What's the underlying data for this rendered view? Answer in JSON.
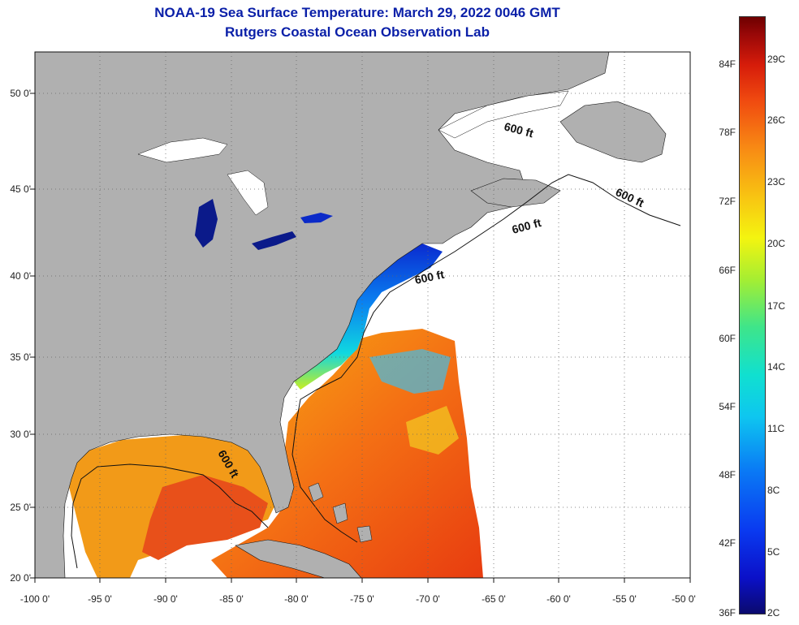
{
  "title_line1": "NOAA-19 Sea Surface Temperature:  March 29, 2022 0046 GMT",
  "title_line2": "Rutgers Coastal Ocean Observation Lab",
  "axes": {
    "lat_labels": [
      "50 0'",
      "45 0'",
      "40 0'",
      "35 0'",
      "30 0'",
      "25 0'",
      "20 0'"
    ],
    "lon_labels": [
      "-100 0'",
      "-95 0'",
      "-90 0'",
      "-85 0'",
      "-80 0'",
      "-75 0'",
      "-70 0'",
      "-65 0'",
      "-60 0'",
      "-55 0'",
      "-50 0'"
    ],
    "grid": "dotted"
  },
  "contour_label": "600 ft",
  "colorbar": {
    "fahrenheit_labels": [
      "84F",
      "78F",
      "72F",
      "66F",
      "60F",
      "54F",
      "48F",
      "42F",
      "36F"
    ],
    "celsius_labels": [
      "29C",
      "26C",
      "23C",
      "20C",
      "17C",
      "14C",
      "11C",
      "8C",
      "5C",
      "2C"
    ],
    "colors": [
      "#0b0a6e",
      "#0a7af5",
      "#10e0d0",
      "#f4f410",
      "#f04a10",
      "#6e0000"
    ]
  },
  "colors": {
    "land": "#b0b0b0",
    "title": "#0a1fa8",
    "no_data": "#ffffff"
  }
}
